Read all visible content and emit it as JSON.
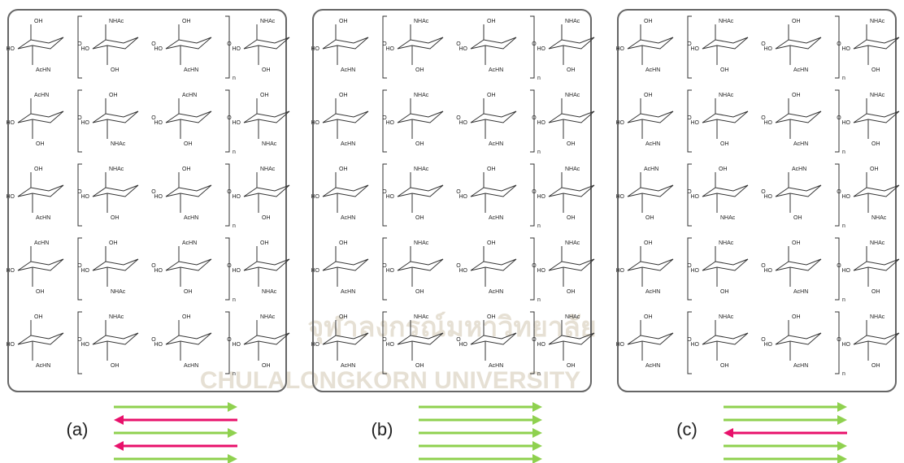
{
  "watermark": {
    "thai": "จุฬาลงกรณ์มหาวิทยาลัย",
    "english": "CHULALONGKORN UNIVERSITY"
  },
  "panels": [
    {
      "label": "(a)",
      "rows": [
        {
          "rings": [
            [
              "OH",
              "HO",
              "AcHN"
            ],
            [
              "NHAc",
              "HO",
              "OH"
            ],
            [
              "OH",
              "HO",
              "AcHN"
            ],
            [
              "NHAc",
              "HO",
              "OH"
            ]
          ],
          "links": [
            "O",
            "O",
            "O"
          ],
          "n": "n"
        },
        {
          "rings": [
            [
              "AcHN",
              "HO",
              "OH"
            ],
            [
              "OH",
              "HO",
              "NHAc"
            ],
            [
              "AcHN",
              "HO",
              "OH"
            ],
            [
              "OH",
              "HO",
              "NHAc"
            ]
          ],
          "links": [
            "O",
            "O",
            "O"
          ],
          "n": "n"
        },
        {
          "rings": [
            [
              "OH",
              "HO",
              "AcHN"
            ],
            [
              "NHAc",
              "HO",
              "OH"
            ],
            [
              "OH",
              "HO",
              "AcHN"
            ],
            [
              "NHAc",
              "HO",
              "OH"
            ]
          ],
          "links": [
            "O",
            "O",
            "O"
          ],
          "n": "n"
        },
        {
          "rings": [
            [
              "AcHN",
              "HO",
              "OH"
            ],
            [
              "OH",
              "HO",
              "NHAc"
            ],
            [
              "AcHN",
              "HO",
              "OH"
            ],
            [
              "OH",
              "HO",
              "NHAc"
            ]
          ],
          "links": [
            "O",
            "O",
            "O"
          ],
          "n": "n"
        },
        {
          "rings": [
            [
              "OH",
              "HO",
              "AcHN"
            ],
            [
              "NHAc",
              "HO",
              "OH"
            ],
            [
              "OH",
              "HO",
              "AcHN"
            ],
            [
              "NHAc",
              "HO",
              "OH"
            ]
          ],
          "links": [
            "O",
            "O",
            "O"
          ],
          "n": "n"
        }
      ]
    },
    {
      "label": "(b)",
      "rows": [
        {
          "rings": [
            [
              "OH",
              "HO",
              "AcHN"
            ],
            [
              "NHAc",
              "HO",
              "OH"
            ],
            [
              "OH",
              "HO",
              "AcHN"
            ],
            [
              "NHAc",
              "HO",
              "OH"
            ]
          ],
          "links": [
            "O",
            "O",
            "O"
          ],
          "n": "n"
        },
        {
          "rings": [
            [
              "OH",
              "HO",
              "AcHN"
            ],
            [
              "NHAc",
              "HO",
              "OH"
            ],
            [
              "OH",
              "HO",
              "AcHN"
            ],
            [
              "NHAc",
              "HO",
              "OH"
            ]
          ],
          "links": [
            "O",
            "O",
            "O"
          ],
          "n": "n"
        },
        {
          "rings": [
            [
              "OH",
              "HO",
              "AcHN"
            ],
            [
              "NHAc",
              "HO",
              "OH"
            ],
            [
              "OH",
              "HO",
              "AcHN"
            ],
            [
              "NHAc",
              "HO",
              "OH"
            ]
          ],
          "links": [
            "O",
            "O",
            "O"
          ],
          "n": "n"
        },
        {
          "rings": [
            [
              "OH",
              "HO",
              "AcHN"
            ],
            [
              "NHAc",
              "HO",
              "OH"
            ],
            [
              "OH",
              "HO",
              "AcHN"
            ],
            [
              "NHAc",
              "HO",
              "OH"
            ]
          ],
          "links": [
            "O",
            "O",
            "O"
          ],
          "n": "n"
        },
        {
          "rings": [
            [
              "OH",
              "HO",
              "AcHN"
            ],
            [
              "NHAc",
              "HO",
              "OH"
            ],
            [
              "OH",
              "HO",
              "AcHN"
            ],
            [
              "NHAc",
              "HO",
              "OH"
            ]
          ],
          "links": [
            "O",
            "O",
            "O"
          ],
          "n": "n"
        }
      ]
    },
    {
      "label": "(c)",
      "rows": [
        {
          "rings": [
            [
              "OH",
              "HO",
              "AcHN"
            ],
            [
              "NHAc",
              "HO",
              "OH"
            ],
            [
              "OH",
              "HO",
              "AcHN"
            ],
            [
              "NHAc",
              "HO",
              "OH"
            ]
          ],
          "links": [
            "O",
            "O",
            "O"
          ],
          "n": "n"
        },
        {
          "rings": [
            [
              "OH",
              "HO",
              "AcHN"
            ],
            [
              "NHAc",
              "HO",
              "OH"
            ],
            [
              "OH",
              "HO",
              "AcHN"
            ],
            [
              "NHAc",
              "HO",
              "OH"
            ]
          ],
          "links": [
            "O",
            "O",
            "O"
          ],
          "n": "n"
        },
        {
          "rings": [
            [
              "AcHN",
              "HO",
              "OH"
            ],
            [
              "OH",
              "HO",
              "NHAc"
            ],
            [
              "AcHN",
              "HO",
              "OH"
            ],
            [
              "OH",
              "HO",
              "NHAc"
            ]
          ],
          "links": [
            "O",
            "O",
            "O"
          ],
          "n": "n"
        },
        {
          "rings": [
            [
              "OH",
              "HO",
              "AcHN"
            ],
            [
              "NHAc",
              "HO",
              "OH"
            ],
            [
              "OH",
              "HO",
              "AcHN"
            ],
            [
              "NHAc",
              "HO",
              "OH"
            ]
          ],
          "links": [
            "O",
            "O",
            "O"
          ],
          "n": "n"
        },
        {
          "rings": [
            [
              "OH",
              "HO",
              "AcHN"
            ],
            [
              "NHAc",
              "HO",
              "OH"
            ],
            [
              "OH",
              "HO",
              "AcHN"
            ],
            [
              "NHAc",
              "HO",
              "OH"
            ]
          ],
          "links": [
            "O",
            "O",
            "O"
          ],
          "n": "n"
        }
      ]
    }
  ]
}
